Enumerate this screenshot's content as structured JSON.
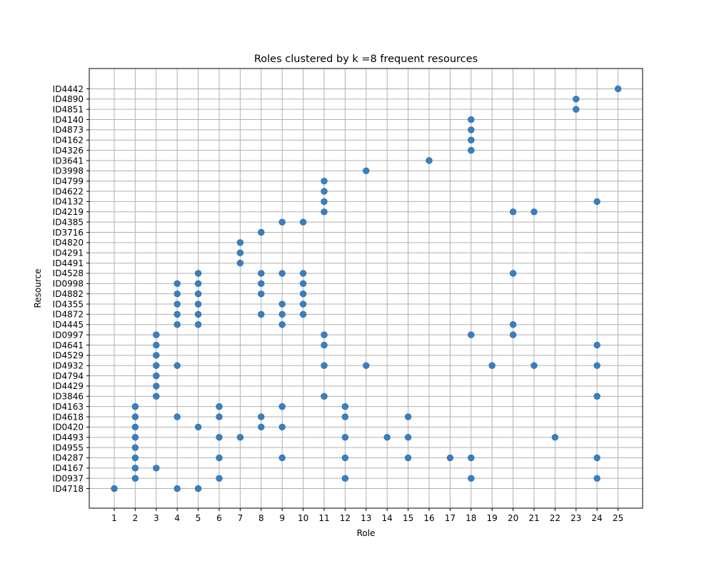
{
  "chart_data": {
    "type": "scatter",
    "title": "Roles clustered by k =8 frequent resources",
    "xlabel": "Role",
    "ylabel": "Resource",
    "grid": true,
    "marker_color": "#3a7ebf",
    "x_categories": [
      "1",
      "2",
      "3",
      "4",
      "5",
      "6",
      "7",
      "8",
      "9",
      "10",
      "11",
      "12",
      "13",
      "14",
      "15",
      "16",
      "17",
      "18",
      "19",
      "20",
      "21",
      "22",
      "23",
      "24",
      "25"
    ],
    "y_categories": [
      "ID4718",
      "ID0937",
      "ID4167",
      "ID4287",
      "ID4955",
      "ID4493",
      "ID0420",
      "ID4618",
      "ID4163",
      "ID3846",
      "ID4429",
      "ID4794",
      "ID4932",
      "ID4529",
      "ID4641",
      "ID0997",
      "ID4445",
      "ID4872",
      "ID4355",
      "ID4882",
      "ID0998",
      "ID4528",
      "ID4491",
      "ID4291",
      "ID4820",
      "ID3716",
      "ID4385",
      "ID4219",
      "ID4132",
      "ID4622",
      "ID4799",
      "ID3998",
      "ID3641",
      "ID4326",
      "ID4162",
      "ID4873",
      "ID4140",
      "ID4851",
      "ID4890",
      "ID4442"
    ],
    "points": [
      {
        "resource": "ID4718",
        "roles": [
          1,
          4,
          5
        ]
      },
      {
        "resource": "ID0937",
        "roles": [
          2,
          6,
          12,
          18,
          24
        ]
      },
      {
        "resource": "ID4167",
        "roles": [
          2,
          3
        ]
      },
      {
        "resource": "ID4287",
        "roles": [
          2,
          6,
          9,
          12,
          15,
          17,
          18,
          24
        ]
      },
      {
        "resource": "ID4955",
        "roles": [
          2
        ]
      },
      {
        "resource": "ID4493",
        "roles": [
          2,
          6,
          7,
          12,
          14,
          15,
          22
        ]
      },
      {
        "resource": "ID0420",
        "roles": [
          2,
          5,
          8,
          9
        ]
      },
      {
        "resource": "ID4618",
        "roles": [
          2,
          4,
          6,
          8,
          12,
          15
        ]
      },
      {
        "resource": "ID4163",
        "roles": [
          2,
          6,
          9,
          12
        ]
      },
      {
        "resource": "ID3846",
        "roles": [
          3,
          11,
          24
        ]
      },
      {
        "resource": "ID4429",
        "roles": [
          3
        ]
      },
      {
        "resource": "ID4794",
        "roles": [
          3
        ]
      },
      {
        "resource": "ID4932",
        "roles": [
          3,
          4,
          11,
          13,
          19,
          21,
          24
        ]
      },
      {
        "resource": "ID4529",
        "roles": [
          3
        ]
      },
      {
        "resource": "ID4641",
        "roles": [
          3,
          11,
          24
        ]
      },
      {
        "resource": "ID0997",
        "roles": [
          3,
          11,
          18,
          20
        ]
      },
      {
        "resource": "ID4445",
        "roles": [
          4,
          5,
          9,
          20
        ]
      },
      {
        "resource": "ID4872",
        "roles": [
          4,
          5,
          8,
          9,
          10
        ]
      },
      {
        "resource": "ID4355",
        "roles": [
          4,
          5,
          9,
          10
        ]
      },
      {
        "resource": "ID4882",
        "roles": [
          4,
          5,
          8,
          10
        ]
      },
      {
        "resource": "ID0998",
        "roles": [
          4,
          5,
          8,
          10
        ]
      },
      {
        "resource": "ID4528",
        "roles": [
          5,
          8,
          9,
          10,
          20
        ]
      },
      {
        "resource": "ID4491",
        "roles": [
          7
        ]
      },
      {
        "resource": "ID4291",
        "roles": [
          7
        ]
      },
      {
        "resource": "ID4820",
        "roles": [
          7
        ]
      },
      {
        "resource": "ID3716",
        "roles": [
          8
        ]
      },
      {
        "resource": "ID4385",
        "roles": [
          9,
          10
        ]
      },
      {
        "resource": "ID4219",
        "roles": [
          11,
          20,
          21
        ]
      },
      {
        "resource": "ID4132",
        "roles": [
          11,
          24
        ]
      },
      {
        "resource": "ID4622",
        "roles": [
          11
        ]
      },
      {
        "resource": "ID4799",
        "roles": [
          11
        ]
      },
      {
        "resource": "ID3998",
        "roles": [
          13
        ]
      },
      {
        "resource": "ID3641",
        "roles": [
          16
        ]
      },
      {
        "resource": "ID4326",
        "roles": [
          18
        ]
      },
      {
        "resource": "ID4162",
        "roles": [
          18
        ]
      },
      {
        "resource": "ID4873",
        "roles": [
          18
        ]
      },
      {
        "resource": "ID4140",
        "roles": [
          18
        ]
      },
      {
        "resource": "ID4851",
        "roles": [
          23
        ]
      },
      {
        "resource": "ID4890",
        "roles": [
          23
        ]
      },
      {
        "resource": "ID4442",
        "roles": [
          25
        ]
      }
    ]
  }
}
